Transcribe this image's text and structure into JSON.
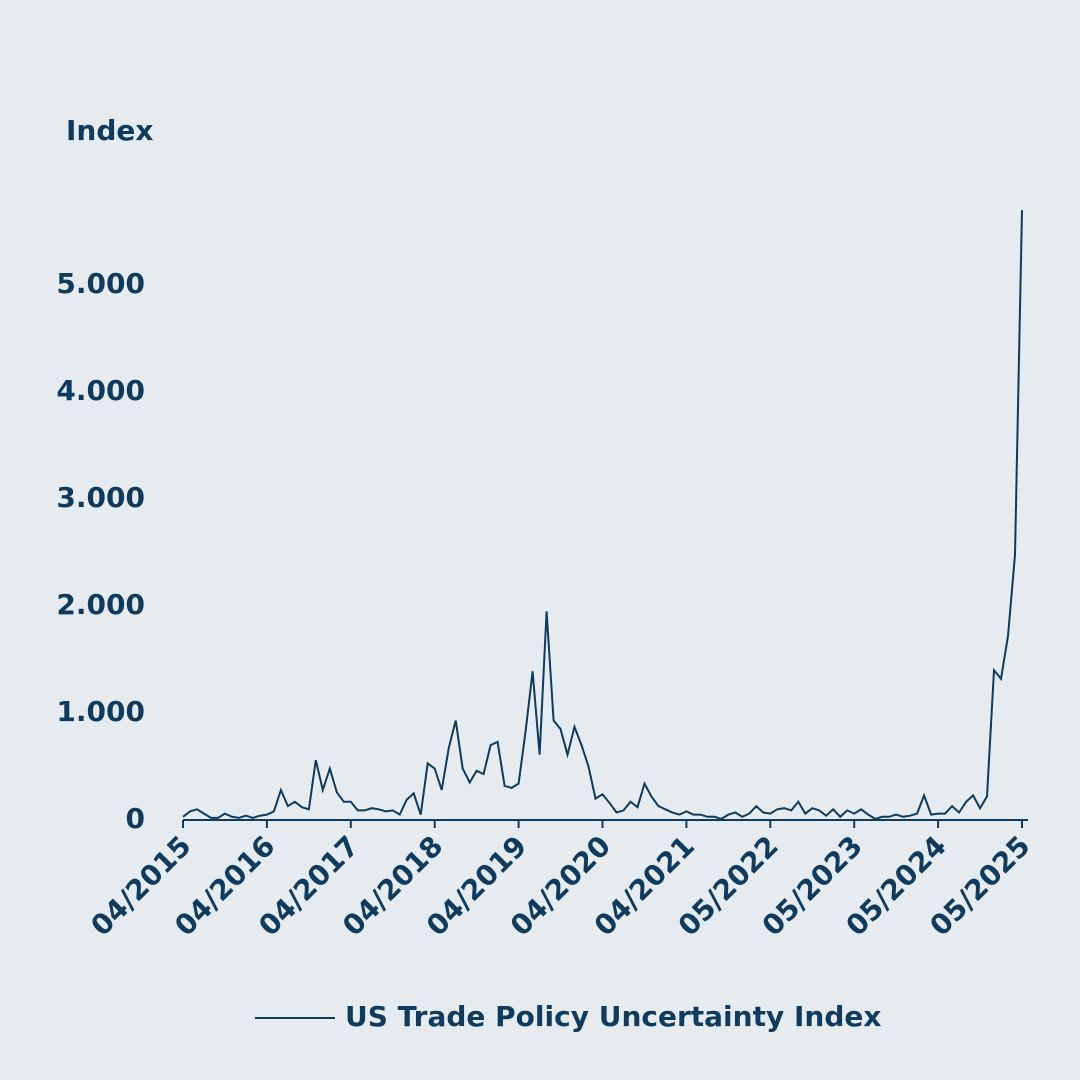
{
  "chart_data": {
    "type": "line",
    "y_axis_label": "Index",
    "categories": [
      "04/2015",
      null,
      null,
      null,
      null,
      null,
      null,
      null,
      null,
      null,
      null,
      null,
      "04/2016",
      null,
      null,
      null,
      null,
      null,
      null,
      null,
      null,
      null,
      null,
      null,
      "04/2017",
      null,
      null,
      null,
      null,
      null,
      null,
      null,
      null,
      null,
      null,
      null,
      "04/2018",
      null,
      null,
      null,
      null,
      null,
      null,
      null,
      null,
      null,
      null,
      null,
      "04/2019",
      null,
      null,
      null,
      null,
      null,
      null,
      null,
      null,
      null,
      null,
      null,
      "04/2020",
      null,
      null,
      null,
      null,
      null,
      null,
      null,
      null,
      null,
      null,
      null,
      "04/2021",
      null,
      null,
      null,
      null,
      null,
      null,
      null,
      null,
      null,
      null,
      null,
      "05/2022",
      null,
      null,
      null,
      null,
      null,
      null,
      null,
      null,
      null,
      null,
      null,
      "05/2023",
      null,
      null,
      null,
      null,
      null,
      null,
      null,
      null,
      null,
      null,
      null,
      "05/2024",
      null,
      null,
      null,
      null,
      null,
      null,
      null,
      null,
      null,
      null,
      null,
      "05/2025"
    ],
    "series": [
      {
        "name": "US Trade Policy Uncertainty Index",
        "color": "#0f3b5f",
        "values": [
          30,
          80,
          100,
          60,
          20,
          20,
          60,
          30,
          20,
          40,
          20,
          40,
          50,
          80,
          280,
          130,
          170,
          120,
          100,
          560,
          280,
          480,
          260,
          170,
          170,
          90,
          90,
          110,
          100,
          80,
          90,
          50,
          190,
          250,
          50,
          530,
          480,
          280,
          670,
          930,
          480,
          350,
          460,
          430,
          700,
          730,
          320,
          300,
          340,
          830,
          1390,
          610,
          1950,
          930,
          850,
          610,
          870,
          700,
          500,
          200,
          240,
          160,
          70,
          90,
          170,
          120,
          340,
          220,
          130,
          100,
          70,
          50,
          80,
          50,
          50,
          30,
          30,
          10,
          50,
          70,
          30,
          60,
          130,
          70,
          60,
          100,
          110,
          90,
          170,
          60,
          110,
          90,
          40,
          100,
          30,
          90,
          60,
          100,
          50,
          10,
          30,
          30,
          50,
          30,
          40,
          60,
          230,
          50,
          60,
          60,
          130,
          70,
          170,
          230,
          110,
          220,
          1400,
          1320,
          1720,
          2480,
          5700
        ]
      }
    ],
    "ylim": [
      0,
      5800
    ],
    "yticks": [
      0,
      {
        "value": 1000,
        "label": "1.000"
      },
      {
        "value": 2000,
        "label": "2.000"
      },
      {
        "value": 3000,
        "label": "3.000"
      },
      {
        "value": 4000,
        "label": "4.000"
      },
      {
        "value": 5000,
        "label": "5.000"
      }
    ],
    "grid": false,
    "legend": "bottom"
  }
}
